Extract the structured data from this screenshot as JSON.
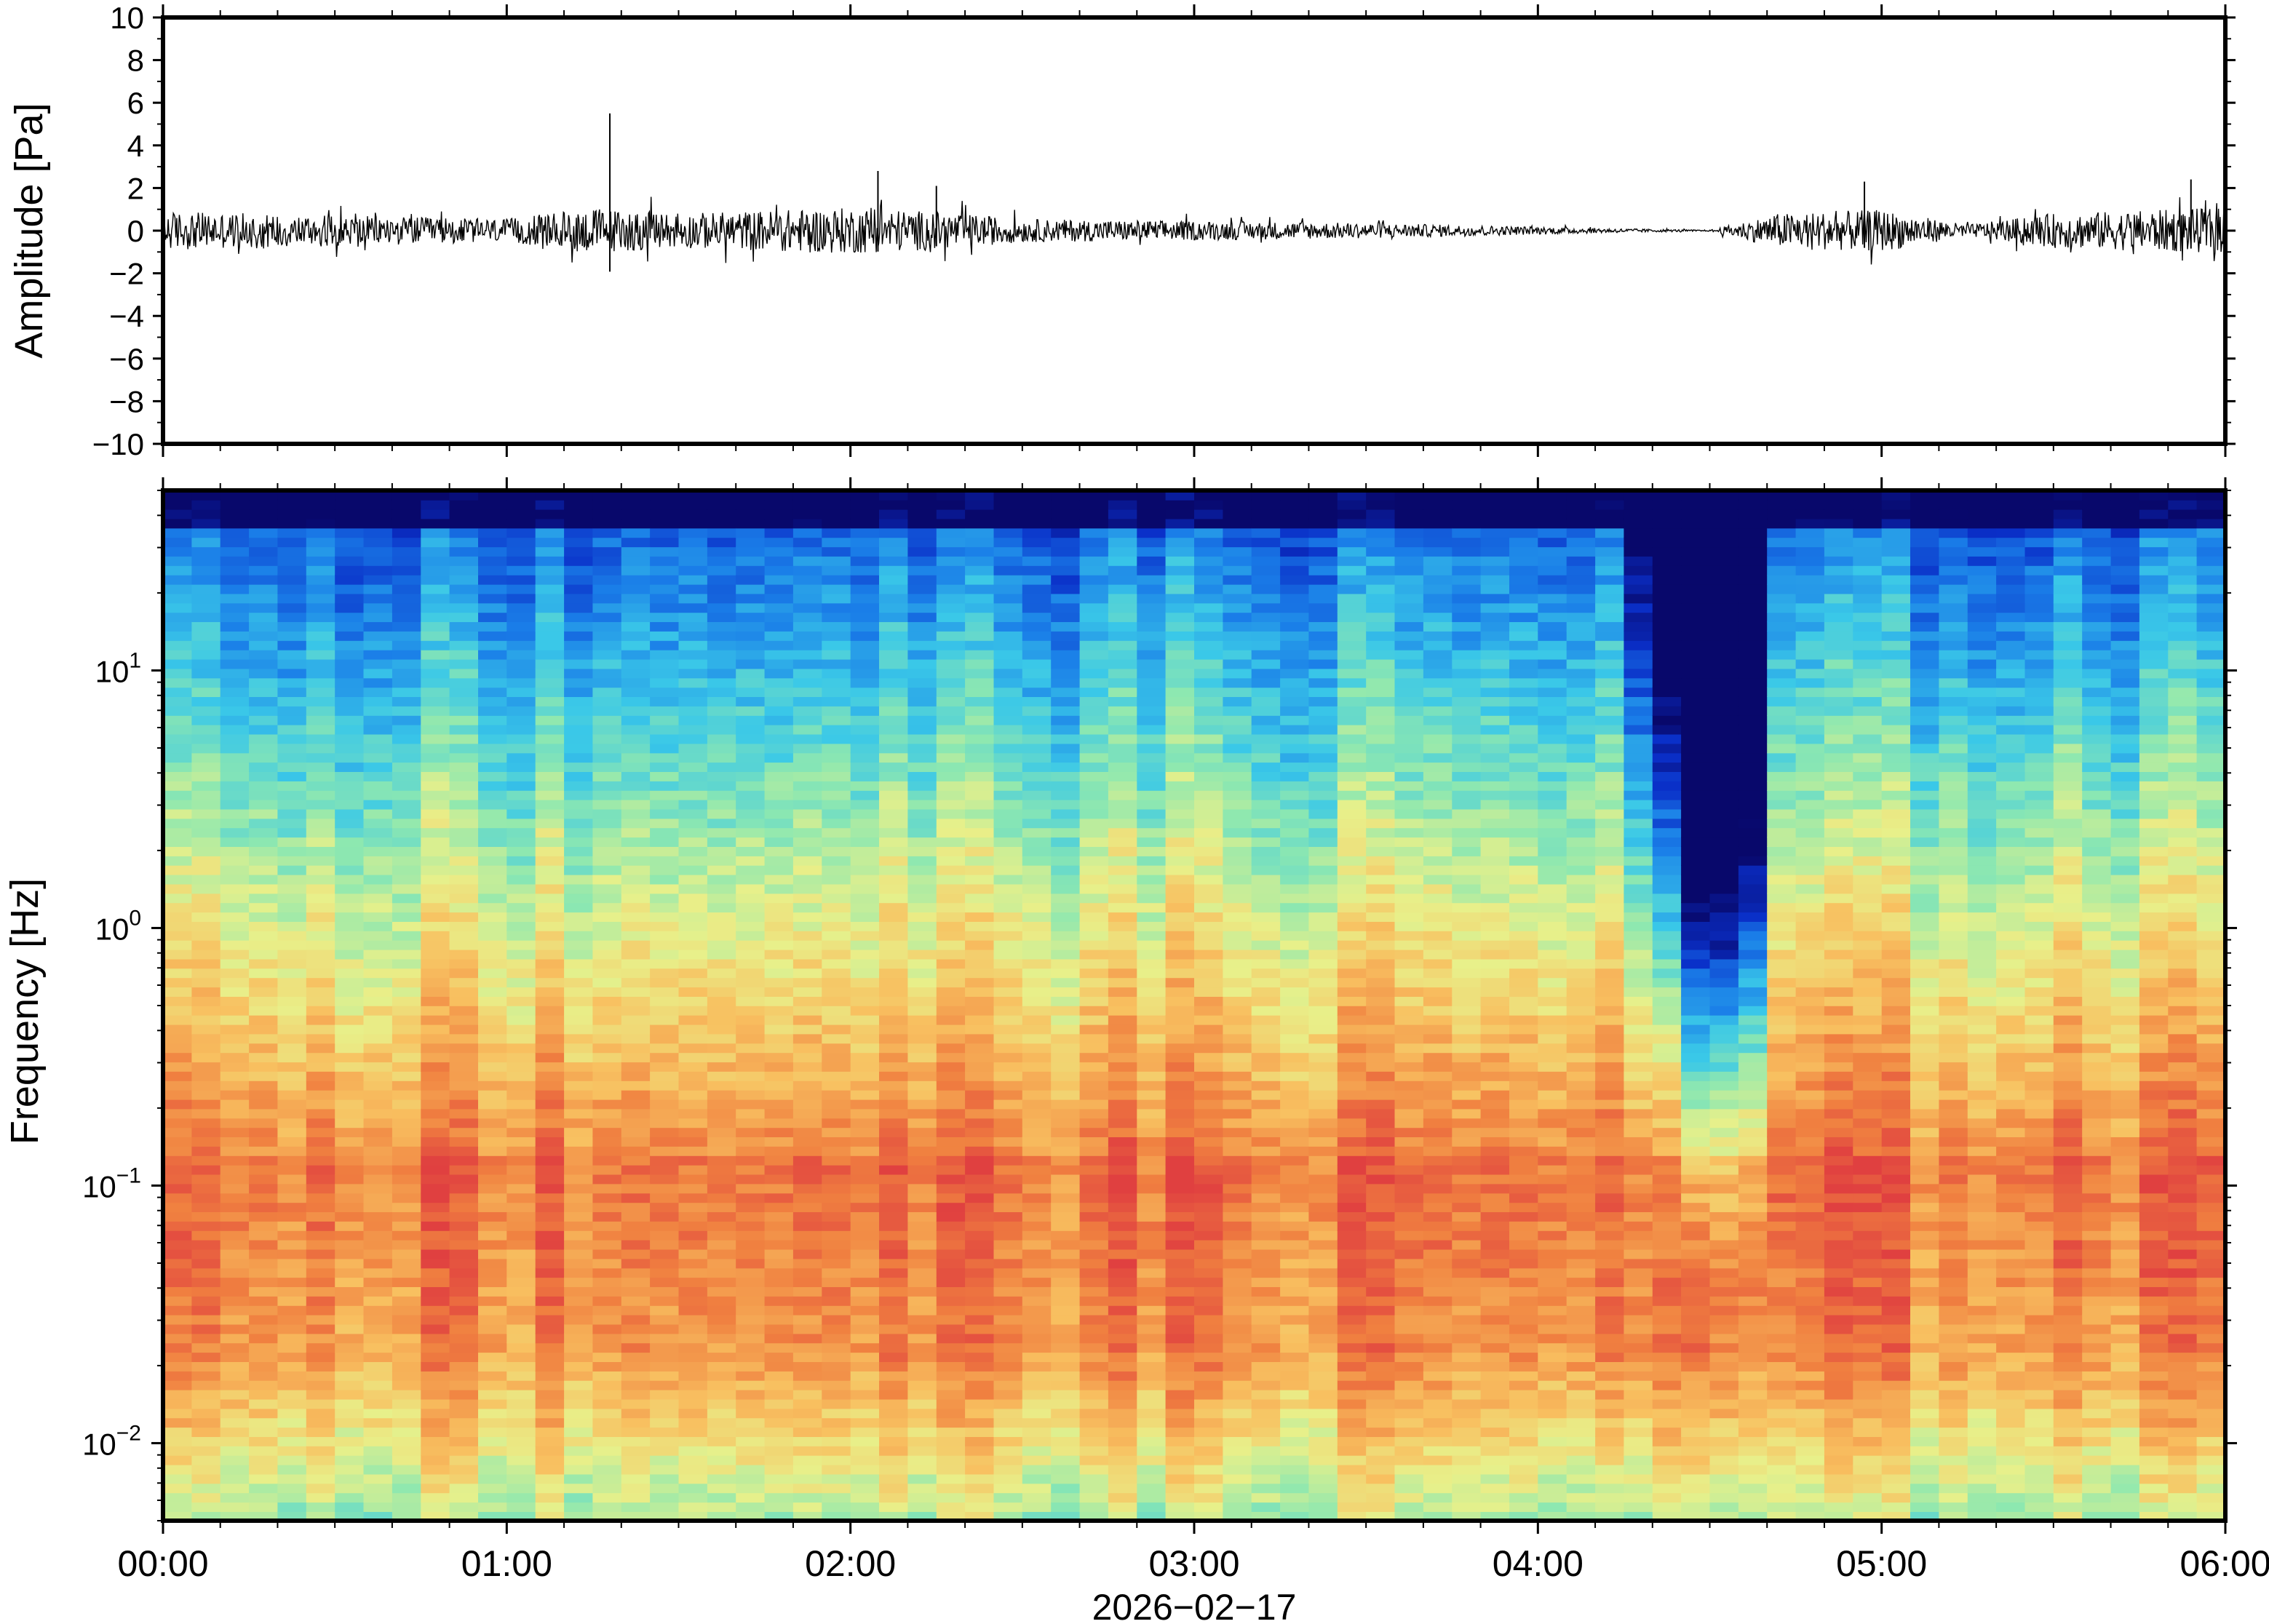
{
  "chart_data": [
    {
      "type": "line",
      "ylabel": "Amplitude [Pa]",
      "ylim": [
        -10,
        10
      ],
      "yticks": [
        "10",
        "8",
        "6",
        "4",
        "2",
        "0",
        "−2",
        "−4",
        "−6",
        "−8",
        "−10"
      ],
      "xlim": [
        "00:00",
        "06:00"
      ],
      "series": [
        {
          "description_of_envelope": "",
          "envelope_hours": [
            0.0,
            0.5,
            1.0,
            1.25,
            1.5,
            2.0,
            2.25,
            2.5,
            3.0,
            3.5,
            4.0,
            4.25,
            4.5,
            4.7,
            5.0,
            5.25,
            5.5,
            6.0
          ],
          "envelope_pa": [
            1.0,
            0.8,
            0.6,
            1.2,
            0.9,
            1.2,
            1.0,
            0.6,
            0.5,
            0.4,
            0.2,
            0.1,
            0.03,
            0.9,
            1.1,
            0.3,
            0.9,
            1.2
          ],
          "spikes_hours": [
            1.3,
            2.08,
            2.25,
            4.95,
            5.9
          ],
          "spikes_pa": [
            5.5,
            2.8,
            2.1,
            2.3,
            2.4
          ],
          "color": "#000000"
        }
      ]
    },
    {
      "type": "heatmap",
      "ylabel": "Frequency [Hz]",
      "yscale": "log",
      "ylim": [
        0.005,
        50
      ],
      "yticks": [
        {
          "base": "10",
          "exp": "1"
        },
        {
          "base": "10",
          "exp": "0"
        },
        {
          "base": "10",
          "exp": "−1"
        },
        {
          "base": "10",
          "exp": "−2"
        }
      ],
      "xlabel": "2026−02−17",
      "xticks": [
        "00:00",
        "01:00",
        "02:00",
        "03:00",
        "04:00",
        "05:00",
        "06:00"
      ],
      "xlim": [
        "00:00",
        "06:00"
      ],
      "colormap": [
        "#08086b",
        "#0a2fc8",
        "#1a7ee8",
        "#3ac8e8",
        "#8ee8b0",
        "#e8f08a",
        "#f8c060",
        "#f08040",
        "#e04040"
      ],
      "quiet_period_hours": [
        4.25,
        4.7
      ],
      "notch_hours": [
        4.45,
        4.65
      ]
    }
  ]
}
